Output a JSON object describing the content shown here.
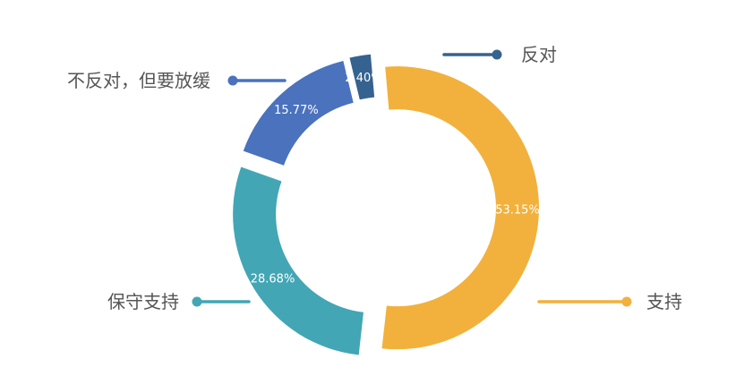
{
  "chart_data": {
    "type": "pie",
    "variant": "donut",
    "title": "",
    "unit": "%",
    "slices": [
      {
        "label": "支持",
        "value": 53.15,
        "value_label": "53.15%",
        "color": "#F2B13C"
      },
      {
        "label": "保守支持",
        "value": 28.68,
        "value_label": "28.68%",
        "color": "#42A6B5"
      },
      {
        "label": "不反对，但要放缓",
        "value": 15.77,
        "value_label": "15.77%",
        "color": "#4A72BD"
      },
      {
        "label": "反对",
        "value": 2.4,
        "value_label": "2.40%",
        "color": "#36628F"
      }
    ]
  }
}
